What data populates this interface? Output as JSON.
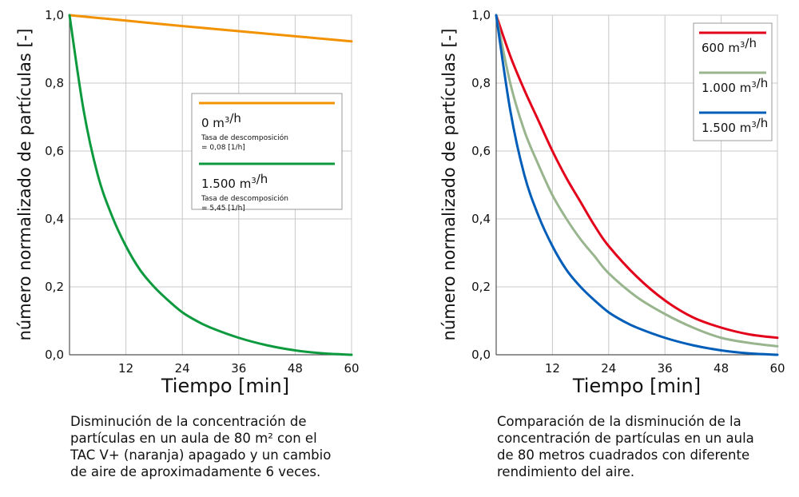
{
  "chart_data": [
    {
      "type": "line",
      "xlabel": "Tiempo [min]",
      "ylabel": "número normalizado de partículas [-]",
      "xlim": [
        0,
        60
      ],
      "ylim": [
        0,
        1
      ],
      "x_ticks": [
        "12",
        "24",
        "36",
        "48",
        "60"
      ],
      "y_ticks": [
        "0,0",
        "0,2",
        "0,4",
        "0,6",
        "0,8",
        "1,0"
      ],
      "grid": true,
      "legend_position": "middle-right",
      "series": [
        {
          "name": "0 m³/h",
          "note_line1": "Tasa de descomposición",
          "note_line2": "= 0,08 [1/h]",
          "color": "#f39200",
          "x": [
            0,
            12,
            24,
            36,
            48,
            60
          ],
          "y": [
            1.0,
            0.984,
            0.968,
            0.953,
            0.938,
            0.923
          ]
        },
        {
          "name": "1.500 m³/h",
          "note_line1": "Tasa de descomposición",
          "note_line2": "= 5,45 [1/h]",
          "color": "#0d9a3f",
          "x": [
            0,
            3,
            6,
            9,
            12,
            15,
            18,
            21,
            24,
            27,
            30,
            36,
            42,
            48,
            54,
            60
          ],
          "y": [
            1.0,
            0.72,
            0.53,
            0.41,
            0.32,
            0.25,
            0.2,
            0.16,
            0.125,
            0.1,
            0.08,
            0.05,
            0.028,
            0.013,
            0.004,
            0.0
          ]
        }
      ],
      "caption_lines": [
        "Disminución de la concentración de",
        "partículas en un aula de 80 m² con el",
        "TAC V+ (naranja) apagado y un cambio",
        "de aire de aproximadamente 6 veces."
      ]
    },
    {
      "type": "line",
      "xlabel": "Tiempo [min]",
      "ylabel": "número normalizado de partículas [-]",
      "xlim": [
        0,
        60
      ],
      "ylim": [
        0,
        1
      ],
      "x_ticks": [
        "12",
        "24",
        "36",
        "48",
        "60"
      ],
      "y_ticks": [
        "0,0",
        "0,2",
        "0,4",
        "0,6",
        "0,8",
        "1,0"
      ],
      "grid": true,
      "legend_position": "top-right",
      "series": [
        {
          "name": "600 m³/h",
          "color": "#e2001a",
          "x": [
            0,
            3,
            6,
            9,
            12,
            15,
            18,
            21,
            24,
            30,
            36,
            42,
            48,
            54,
            60
          ],
          "y": [
            1.0,
            0.88,
            0.78,
            0.69,
            0.6,
            0.52,
            0.45,
            0.38,
            0.32,
            0.23,
            0.16,
            0.11,
            0.08,
            0.06,
            0.05
          ]
        },
        {
          "name": "1.000 m³/h",
          "color": "#98b58e",
          "x": [
            0,
            3,
            6,
            9,
            12,
            15,
            18,
            21,
            24,
            30,
            36,
            42,
            48,
            54,
            60
          ],
          "y": [
            1.0,
            0.8,
            0.66,
            0.56,
            0.47,
            0.4,
            0.34,
            0.29,
            0.24,
            0.17,
            0.12,
            0.08,
            0.05,
            0.035,
            0.025
          ]
        },
        {
          "name": "1.500 m³/h",
          "color": "#005eb8",
          "x": [
            0,
            3,
            6,
            9,
            12,
            15,
            18,
            21,
            24,
            27,
            30,
            36,
            42,
            48,
            54,
            60
          ],
          "y": [
            1.0,
            0.72,
            0.53,
            0.41,
            0.32,
            0.25,
            0.2,
            0.16,
            0.125,
            0.1,
            0.08,
            0.05,
            0.028,
            0.013,
            0.004,
            0.0
          ]
        }
      ],
      "caption_lines": [
        "Comparación de la disminución de la",
        "concentración de partículas en un aula",
        "de 80 metros cuadrados con diferente",
        "rendimiento del aire."
      ]
    }
  ]
}
